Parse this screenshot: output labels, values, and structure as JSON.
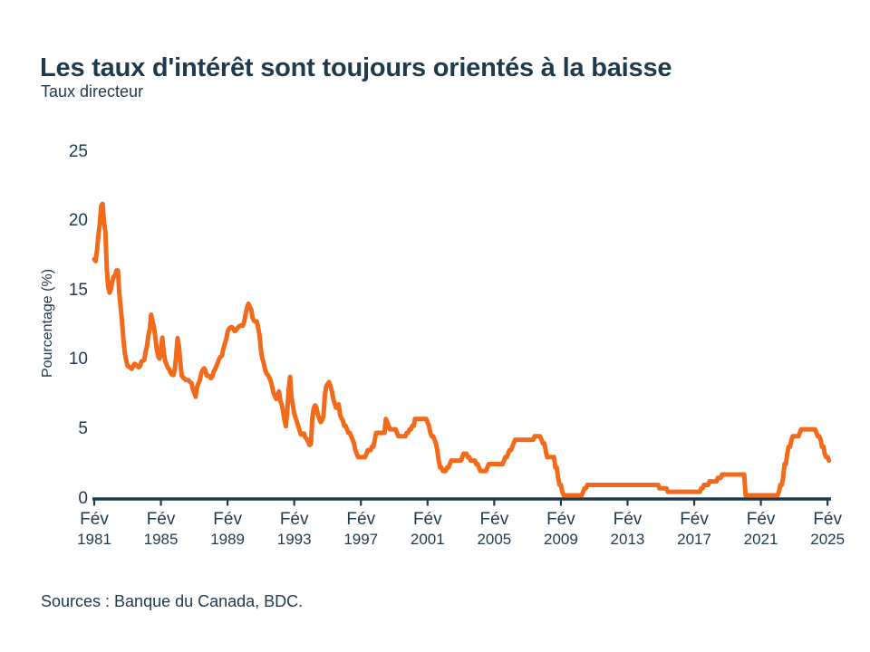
{
  "header": {
    "title": "Les taux d'intérêt sont toujours orientés à la baisse",
    "subtitle": "Taux directeur"
  },
  "source": {
    "text": "Sources : Banque du Canada, BDC."
  },
  "chart": {
    "colors": {
      "line": "#F26A1A",
      "axis": "#1E3A4D",
      "text": "#1E3A4D"
    },
    "y_axis": {
      "label": "Pourcentage (%)",
      "ticks": [
        25,
        20,
        15,
        10,
        5,
        0
      ]
    },
    "x_axis": {
      "month_label": "Fév",
      "years": [
        1981,
        1985,
        1989,
        1993,
        1997,
        2001,
        2005,
        2009,
        2013,
        2017,
        2021,
        2025
      ]
    }
  },
  "chart_data": {
    "type": "line",
    "title": "Les taux d'intérêt sont toujours orientés à la baisse",
    "series_name": "Taux directeur",
    "unit": "%",
    "ylabel": "Pourcentage (%)",
    "ylim": [
      0,
      25
    ],
    "grid": false,
    "legend": false,
    "frequency": "monthly",
    "x_start": "1981-02",
    "x_end": "2025-03",
    "xtick_labels": [
      "Fév 1981",
      "Fév 1985",
      "Fév 1989",
      "Fév 1993",
      "Fév 1997",
      "Fév 2001",
      "Fév 2005",
      "Fév 2009",
      "Fév 2013",
      "Fév 2017",
      "Fév 2021",
      "Fév 2025"
    ],
    "first_year_start_month": 2,
    "monthly": {
      "1981": [
        17.26,
        17.12,
        17.93,
        18.98,
        19.82,
        21.12,
        21.24,
        19.96,
        19.22,
        16.64,
        15.28
      ],
      "1982": [
        14.84,
        15.1,
        15.65,
        16.0,
        16.05,
        16.44,
        16.45,
        14.84,
        13.81,
        12.75,
        11.42,
        10.54
      ],
      "1983": [
        9.97,
        9.57,
        9.51,
        9.44,
        9.35,
        9.56,
        9.72,
        9.66,
        9.54,
        9.48,
        9.56,
        9.91
      ],
      "1984": [
        9.93,
        10.0,
        10.6,
        11.0,
        11.81,
        12.23,
        13.26,
        12.75,
        12.38,
        11.63,
        10.76,
        10.26
      ],
      "1985": [
        10.09,
        10.6,
        11.6,
        10.63,
        9.94,
        9.69,
        9.44,
        9.32,
        9.07,
        8.93,
        8.91,
        9.33
      ],
      "1986": [
        10.32,
        11.57,
        10.96,
        9.85,
        8.88,
        8.73,
        8.66,
        8.56,
        8.54,
        8.53,
        8.4,
        8.33
      ],
      "1987": [
        7.89,
        7.65,
        7.35,
        8.04,
        8.3,
        8.55,
        9.02,
        9.25,
        9.4,
        9.23,
        8.87,
        8.85
      ],
      "1988": [
        8.83,
        8.68,
        8.81,
        9.17,
        9.32,
        9.57,
        9.83,
        10.08,
        10.25,
        10.32,
        10.83,
        11.17
      ],
      "1989": [
        11.5,
        12.0,
        12.25,
        12.34,
        12.37,
        12.25,
        12.08,
        12.12,
        12.26,
        12.39,
        12.47,
        12.47
      ],
      "1990": [
        12.47,
        12.78,
        13.29,
        13.75,
        14.05,
        13.82,
        13.63,
        13.03,
        12.83,
        12.76,
        12.78,
        12.33
      ],
      "1991": [
        11.78,
        10.75,
        10.1,
        9.78,
        9.29,
        9.04,
        8.91,
        8.74,
        8.5,
        8.13,
        7.63,
        7.42
      ],
      "1992": [
        7.19,
        7.45,
        7.73,
        7.04,
        6.78,
        6.26,
        5.63,
        5.23,
        6.33,
        7.9,
        8.78,
        7.36
      ],
      "1993": [
        6.77,
        6.12,
        5.82,
        5.54,
        5.18,
        4.87,
        4.62,
        4.66,
        4.7,
        4.42,
        4.32,
        4.11
      ],
      "1994": [
        3.87,
        3.94,
        5.82,
        6.52,
        6.73,
        6.57,
        6.05,
        5.77,
        5.52,
        5.65,
        5.94,
        7.43
      ],
      "1995": [
        8.08,
        8.25,
        8.41,
        8.15,
        7.79,
        7.24,
        6.9,
        6.56,
        6.7,
        6.8,
        6.03,
        5.79
      ],
      "1996": [
        5.64,
        5.25,
        5.25,
        5.0,
        4.75,
        4.75,
        4.5,
        4.25,
        4.0,
        3.5,
        3.25,
        3.0
      ],
      "1997": [
        3.0,
        3.0,
        3.0,
        3.0,
        3.0,
        3.25,
        3.5,
        3.5,
        3.5,
        3.75,
        3.75,
        4.25
      ],
      "1998": [
        4.75,
        4.75,
        4.75,
        4.75,
        4.75,
        4.75,
        4.75,
        5.75,
        5.5,
        5.25,
        5.0,
        5.0
      ],
      "1999": [
        5.0,
        5.0,
        5.0,
        4.75,
        4.5,
        4.5,
        4.5,
        4.5,
        4.5,
        4.5,
        4.75,
        4.75
      ],
      "2000": [
        5.0,
        5.0,
        5.25,
        5.25,
        5.75,
        5.75,
        5.75,
        5.75,
        5.75,
        5.75,
        5.75,
        5.75
      ],
      "2001": [
        5.75,
        5.5,
        5.25,
        4.75,
        4.5,
        4.5,
        4.25,
        4.0,
        3.5,
        2.75,
        2.25,
        2.25
      ],
      "2002": [
        2.0,
        2.0,
        2.0,
        2.25,
        2.25,
        2.5,
        2.75,
        2.75,
        2.75,
        2.75,
        2.75,
        2.75
      ],
      "2003": [
        2.75,
        2.75,
        3.0,
        3.25,
        3.25,
        3.25,
        3.0,
        3.0,
        2.75,
        2.75,
        2.75,
        2.75
      ],
      "2004": [
        2.5,
        2.5,
        2.25,
        2.0,
        2.0,
        2.0,
        2.0,
        2.0,
        2.25,
        2.5,
        2.5,
        2.5
      ],
      "2005": [
        2.5,
        2.5,
        2.5,
        2.5,
        2.5,
        2.5,
        2.5,
        2.5,
        2.75,
        3.0,
        3.0,
        3.25
      ],
      "2006": [
        3.5,
        3.5,
        3.75,
        4.0,
        4.25,
        4.25,
        4.25,
        4.25,
        4.25,
        4.25,
        4.25,
        4.25
      ],
      "2007": [
        4.25,
        4.25,
        4.25,
        4.25,
        4.25,
        4.25,
        4.5,
        4.5,
        4.5,
        4.5,
        4.5,
        4.25
      ],
      "2008": [
        4.0,
        4.0,
        3.5,
        3.0,
        3.0,
        3.0,
        3.0,
        3.0,
        3.0,
        2.25,
        2.25,
        1.5
      ],
      "2009": [
        1.0,
        1.0,
        0.5,
        0.25,
        0.25,
        0.25,
        0.25,
        0.25,
        0.25,
        0.25,
        0.25,
        0.25
      ],
      "2010": [
        0.25,
        0.25,
        0.25,
        0.25,
        0.25,
        0.5,
        0.75,
        0.75,
        1.0,
        1.0,
        1.0,
        1.0
      ],
      "2011": [
        1.0,
        1.0,
        1.0,
        1.0,
        1.0,
        1.0,
        1.0,
        1.0,
        1.0,
        1.0,
        1.0,
        1.0
      ],
      "2012": [
        1.0,
        1.0,
        1.0,
        1.0,
        1.0,
        1.0,
        1.0,
        1.0,
        1.0,
        1.0,
        1.0,
        1.0
      ],
      "2013": [
        1.0,
        1.0,
        1.0,
        1.0,
        1.0,
        1.0,
        1.0,
        1.0,
        1.0,
        1.0,
        1.0,
        1.0
      ],
      "2014": [
        1.0,
        1.0,
        1.0,
        1.0,
        1.0,
        1.0,
        1.0,
        1.0,
        1.0,
        1.0,
        1.0,
        1.0
      ],
      "2015": [
        0.75,
        0.75,
        0.75,
        0.75,
        0.75,
        0.75,
        0.5,
        0.5,
        0.5,
        0.5,
        0.5,
        0.5
      ],
      "2016": [
        0.5,
        0.5,
        0.5,
        0.5,
        0.5,
        0.5,
        0.5,
        0.5,
        0.5,
        0.5,
        0.5,
        0.5
      ],
      "2017": [
        0.5,
        0.5,
        0.5,
        0.5,
        0.5,
        0.5,
        0.75,
        0.75,
        1.0,
        1.0,
        1.0,
        1.0
      ],
      "2018": [
        1.25,
        1.25,
        1.25,
        1.25,
        1.25,
        1.25,
        1.5,
        1.5,
        1.5,
        1.75,
        1.75,
        1.75
      ],
      "2019": [
        1.75,
        1.75,
        1.75,
        1.75,
        1.75,
        1.75,
        1.75,
        1.75,
        1.75,
        1.75,
        1.75,
        1.75
      ],
      "2020": [
        1.75,
        1.75,
        0.25,
        0.25,
        0.25,
        0.25,
        0.25,
        0.25,
        0.25,
        0.25,
        0.25,
        0.25
      ],
      "2021": [
        0.25,
        0.25,
        0.25,
        0.25,
        0.25,
        0.25,
        0.25,
        0.25,
        0.25,
        0.25,
        0.25,
        0.25
      ],
      "2022": [
        0.25,
        0.25,
        0.5,
        1.0,
        1.0,
        1.5,
        2.5,
        2.5,
        3.25,
        3.75,
        3.75,
        4.25
      ],
      "2023": [
        4.5,
        4.5,
        4.5,
        4.5,
        4.5,
        4.75,
        5.0,
        5.0,
        5.0,
        5.0,
        5.0,
        5.0
      ],
      "2024": [
        5.0,
        5.0,
        5.0,
        5.0,
        5.0,
        4.75,
        4.5,
        4.5,
        4.25,
        3.75,
        3.75,
        3.25
      ],
      "2025": [
        3.0,
        3.0,
        2.75
      ]
    }
  }
}
